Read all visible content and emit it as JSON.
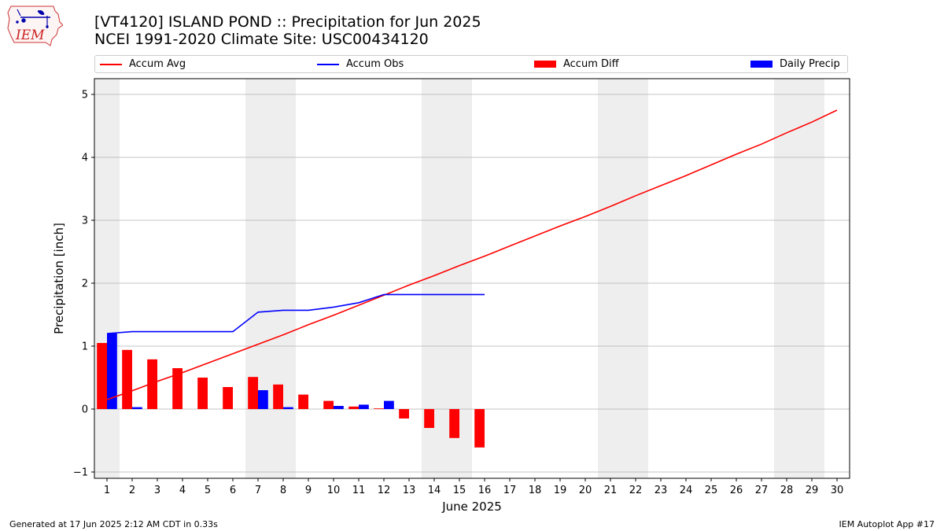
{
  "header": {
    "title_line1": "[VT4120] ISLAND POND :: Precipitation for Jun 2025",
    "title_line2": "NCEI 1991-2020 Climate Site: USC00434120",
    "logo_text": "IEM"
  },
  "footer": {
    "generated": "Generated at 17 Jun 2025 2:12 AM CDT in 0.33s",
    "app": "IEM Autoplot App #17"
  },
  "colors": {
    "avg": "#ff0000",
    "obs": "#0000ff",
    "diff": "#ff0000",
    "daily": "#0000ff",
    "weekend_band": "#eeeeee",
    "grid": "#b0b0b0"
  },
  "legend": [
    {
      "label": "Accum Avg",
      "kind": "line",
      "color": "#ff0000"
    },
    {
      "label": "Accum Obs",
      "kind": "line",
      "color": "#0000ff"
    },
    {
      "label": "Accum Diff",
      "kind": "box",
      "color": "#ff0000"
    },
    {
      "label": "Daily Precip",
      "kind": "box",
      "color": "#0000ff"
    }
  ],
  "chart_data": {
    "type": "bar",
    "title": "[VT4120] ISLAND POND :: Precipitation for Jun 2025",
    "subtitle": "NCEI 1991-2020 Climate Site: USC00434120",
    "xlabel": "June 2025",
    "ylabel": "Precipitation [inch]",
    "xlim": [
      0.5,
      30.5
    ],
    "ylim": [
      -1.1,
      5.25
    ],
    "xticks": [
      1,
      2,
      3,
      4,
      5,
      6,
      7,
      8,
      9,
      10,
      11,
      12,
      13,
      14,
      15,
      16,
      17,
      18,
      19,
      20,
      21,
      22,
      23,
      24,
      25,
      26,
      27,
      28,
      29,
      30
    ],
    "yticks": [
      -1,
      0,
      1,
      2,
      3,
      4,
      5
    ],
    "grid": "y",
    "legend_position": "top",
    "weekend_bands": [
      [
        0.5,
        1.5
      ],
      [
        6.5,
        8.5
      ],
      [
        13.5,
        15.5
      ],
      [
        20.5,
        22.5
      ],
      [
        27.5,
        29.5
      ]
    ],
    "series": [
      {
        "name": "Accum Avg",
        "type": "line",
        "x": [
          1,
          2,
          3,
          4,
          5,
          6,
          7,
          8,
          9,
          10,
          11,
          12,
          13,
          14,
          15,
          16,
          17,
          18,
          19,
          20,
          21,
          22,
          23,
          24,
          25,
          26,
          27,
          28,
          29,
          30
        ],
        "values": [
          0.15,
          0.29,
          0.44,
          0.58,
          0.73,
          0.88,
          1.03,
          1.18,
          1.34,
          1.49,
          1.65,
          1.81,
          1.97,
          2.12,
          2.28,
          2.43,
          2.59,
          2.75,
          2.91,
          3.06,
          3.22,
          3.39,
          3.55,
          3.71,
          3.88,
          4.05,
          4.21,
          4.39,
          4.56,
          4.75
        ]
      },
      {
        "name": "Accum Obs",
        "type": "line",
        "x": [
          1,
          2,
          3,
          4,
          5,
          6,
          7,
          8,
          9,
          10,
          11,
          12,
          13,
          14,
          15,
          16
        ],
        "values": [
          1.2,
          1.23,
          1.23,
          1.23,
          1.23,
          1.23,
          1.54,
          1.57,
          1.57,
          1.62,
          1.69,
          1.82,
          1.82,
          1.82,
          1.82,
          1.82
        ]
      },
      {
        "name": "Accum Diff",
        "type": "bar",
        "x": [
          1,
          2,
          3,
          4,
          5,
          6,
          7,
          8,
          9,
          10,
          11,
          12,
          13,
          14,
          15,
          16
        ],
        "values": [
          1.05,
          0.94,
          0.79,
          0.65,
          0.5,
          0.35,
          0.51,
          0.39,
          0.23,
          0.13,
          0.04,
          0.01,
          -0.15,
          -0.3,
          -0.46,
          -0.61
        ]
      },
      {
        "name": "Daily Precip",
        "type": "bar",
        "x": [
          1,
          2,
          3,
          4,
          5,
          6,
          7,
          8,
          9,
          10,
          11,
          12,
          13,
          14,
          15,
          16
        ],
        "values": [
          1.2,
          0.03,
          0,
          0,
          0,
          0,
          0.3,
          0.03,
          0,
          0.05,
          0.07,
          0.13,
          0,
          0,
          0,
          0
        ]
      }
    ]
  }
}
